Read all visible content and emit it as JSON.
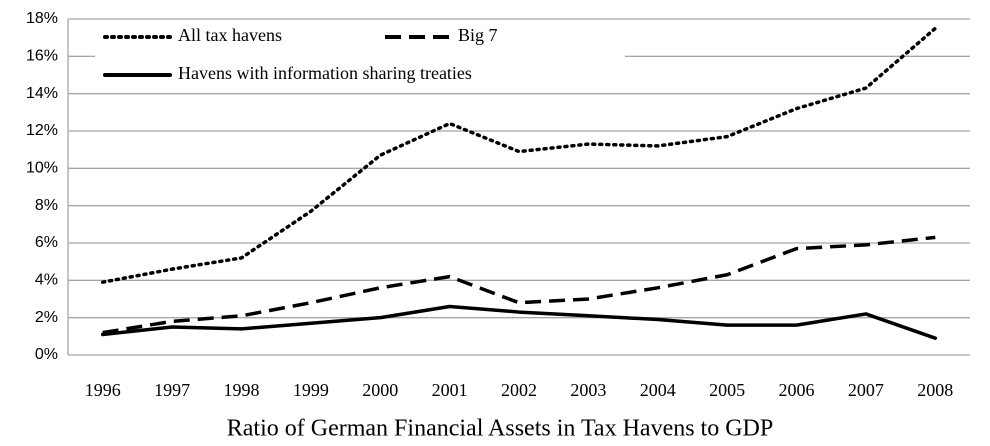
{
  "chart_data": {
    "type": "line",
    "title": "Ratio of German Financial Assets in Tax Havens to GDP",
    "categories": [
      "1996",
      "1997",
      "1998",
      "1999",
      "2000",
      "2001",
      "2002",
      "2003",
      "2004",
      "2005",
      "2006",
      "2007",
      "2008"
    ],
    "series": [
      {
        "name": "All tax havens",
        "color": "#000000",
        "style": "dotted",
        "values": [
          3.9,
          4.6,
          5.2,
          7.7,
          10.7,
          12.4,
          10.9,
          11.3,
          11.2,
          11.7,
          13.2,
          14.3,
          17.5
        ]
      },
      {
        "name": "Big 7",
        "color": "#000000",
        "style": "dashed",
        "values": [
          1.2,
          1.8,
          2.1,
          2.8,
          3.6,
          4.2,
          2.8,
          3.0,
          3.6,
          4.3,
          5.7,
          5.9,
          6.3
        ]
      },
      {
        "name": "Havens with information sharing treaties",
        "color": "#000000",
        "style": "solid",
        "values": [
          1.1,
          1.5,
          1.4,
          1.7,
          2.0,
          2.6,
          2.3,
          2.1,
          1.9,
          1.6,
          1.6,
          2.2,
          0.9
        ]
      }
    ],
    "ylim": [
      0,
      18
    ],
    "yticks": [
      {
        "value": 0,
        "label": "0%"
      },
      {
        "value": 2,
        "label": "2%"
      },
      {
        "value": 4,
        "label": "4%"
      },
      {
        "value": 6,
        "label": "6%"
      },
      {
        "value": 8,
        "label": "8%"
      },
      {
        "value": 10,
        "label": "10%"
      },
      {
        "value": 12,
        "label": "12%"
      },
      {
        "value": 14,
        "label": "14%"
      },
      {
        "value": 16,
        "label": "16%"
      },
      {
        "value": 18,
        "label": "18%"
      }
    ],
    "grid": true,
    "legend": "top-left"
  }
}
